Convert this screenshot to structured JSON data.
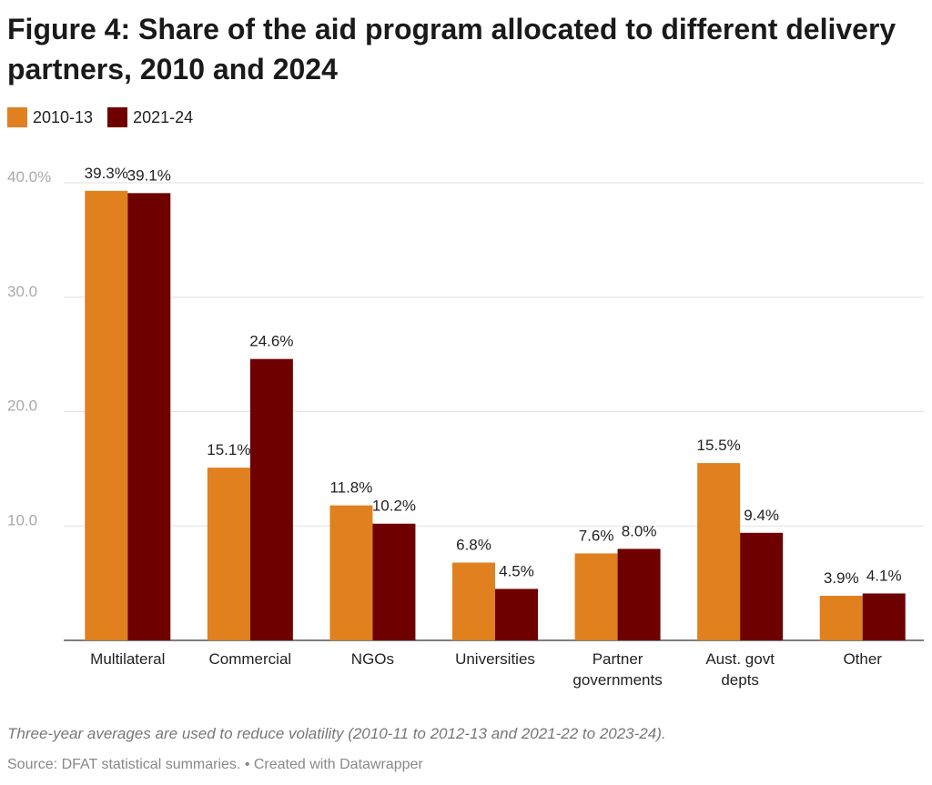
{
  "chart_data": {
    "type": "grouped-bar",
    "title": "Figure 4: Share of the aid program allocated to different delivery partners, 2010 and 2024",
    "categories": [
      "Multilateral",
      "Commercial",
      "NGOs",
      "Universities",
      "Partner governments",
      "Aust. govt depts",
      "Other"
    ],
    "series": [
      {
        "name": "2010-13",
        "color": "#e0801f",
        "values": [
          39.3,
          15.1,
          11.8,
          6.8,
          7.6,
          15.5,
          3.9
        ],
        "value_labels": [
          "39.3%",
          "15.1%",
          "11.8%",
          "6.8%",
          "7.6%",
          "15.5%",
          "3.9%"
        ]
      },
      {
        "name": "2021-24",
        "color": "#6e0000",
        "values": [
          39.1,
          24.6,
          10.2,
          4.5,
          8.0,
          9.4,
          4.1
        ],
        "value_labels": [
          "39.1%",
          "24.6%",
          "10.2%",
          "4.5%",
          "8.0%",
          "9.4%",
          "4.1%"
        ]
      }
    ],
    "ylim": [
      0,
      40
    ],
    "yticks": [
      {
        "value": 10,
        "label": "10.0"
      },
      {
        "value": 20,
        "label": "20.0"
      },
      {
        "value": 30,
        "label": "30.0"
      },
      {
        "value": 40,
        "label": "40.0%"
      }
    ],
    "grid": true,
    "note": "Three-year averages are used to reduce volatility (2010-11 to 2012-13 and 2021-22 to 2023-24).",
    "source": "Source: DFAT statistical summaries. • Created with Datawrapper"
  }
}
